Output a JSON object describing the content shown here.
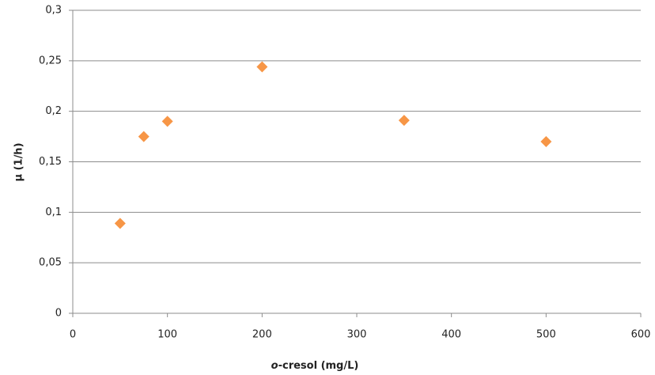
{
  "chart_data": {
    "type": "scatter",
    "xlabel": "o-cresol (mg/L)",
    "ylabel": "µ (1/h)",
    "x": [
      50,
      75,
      100,
      200,
      350,
      500
    ],
    "values": [
      0.089,
      0.175,
      0.19,
      0.244,
      0.191,
      0.17
    ],
    "color": "#f79646",
    "xlim": [
      0,
      600
    ],
    "xticks": [
      0,
      100,
      200,
      300,
      400,
      500,
      600
    ],
    "ylim": [
      0,
      0.3
    ],
    "yticks": [
      0,
      {
        "value": 0.05,
        "label": "0,05"
      },
      {
        "value": 0.1,
        "label": "0,1"
      },
      {
        "value": 0.15,
        "label": "0,15"
      },
      {
        "value": 0.2,
        "label": "0,2"
      },
      {
        "value": 0.25,
        "label": "0,25"
      },
      {
        "value": 0.3,
        "label": "0,3"
      }
    ],
    "grid": true
  }
}
